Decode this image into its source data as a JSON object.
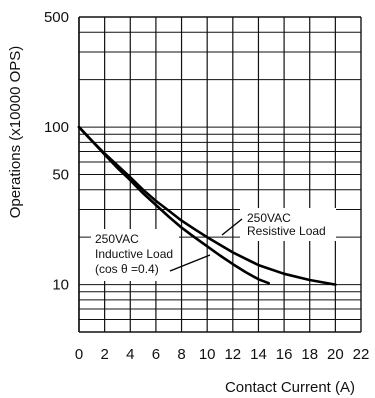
{
  "chart_data": {
    "type": "line",
    "xlabel": "Contact Current (A)",
    "ylabel": "Operations (x10000 OPS)",
    "xlim": [
      0,
      22
    ],
    "ylim": [
      5,
      500
    ],
    "yscale": "log",
    "grid": true,
    "x_ticks": [
      "0",
      "2",
      "4",
      "6",
      "8",
      "10",
      "12",
      "14",
      "16",
      "18",
      "20",
      "22"
    ],
    "y_ticks": [
      {
        "value": 500,
        "label": "500"
      },
      {
        "value": 100,
        "label": "100"
      },
      {
        "value": 50,
        "label": "50"
      },
      {
        "value": 10,
        "label": "10"
      }
    ],
    "series": [
      {
        "name": "250VAC Resistive Load",
        "label_lines": [
          "250VAC",
          "Resistive Load"
        ],
        "x": [
          0,
          1,
          2,
          3,
          4,
          5,
          6,
          7,
          8,
          9,
          10,
          12,
          14,
          16,
          18,
          20
        ],
        "y": [
          100,
          82,
          68,
          57,
          48,
          40,
          34,
          29.5,
          25.5,
          22.5,
          20,
          16,
          13.3,
          11.7,
          10.7,
          10
        ]
      },
      {
        "name": "250VAC Inductive Load (cos θ =0.4)",
        "label_lines": [
          "250VAC",
          "Inductive Load",
          "(cos θ =0.4)"
        ],
        "x": [
          0,
          1,
          2,
          3,
          4,
          5,
          6,
          7,
          8,
          9,
          10,
          11,
          12,
          13,
          14,
          14.8
        ],
        "y": [
          100,
          82,
          67,
          55,
          46,
          38,
          32,
          27,
          23,
          20,
          17.5,
          15.3,
          13.5,
          12,
          10.8,
          10.2
        ]
      }
    ]
  }
}
